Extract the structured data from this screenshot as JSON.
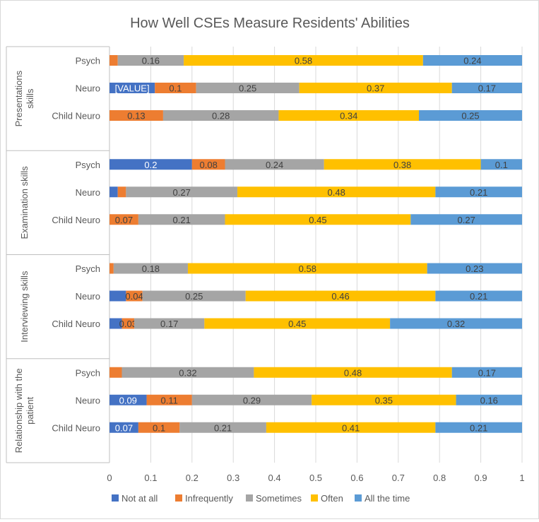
{
  "chart_data": {
    "type": "bar",
    "orientation": "horizontal",
    "stacked": true,
    "title": "How Well CSEs Measure Residents' Abilities",
    "xlabel": "",
    "ylabel": "",
    "xlim": [
      0,
      1
    ],
    "x_ticks": [
      "0",
      "0.1",
      "0.2",
      "0.3",
      "0.4",
      "0.5",
      "0.6",
      "0.7",
      "0.8",
      "0.9",
      "1"
    ],
    "grid": true,
    "legend_position": "bottom",
    "groups": [
      {
        "label": "Presentations skills",
        "label_lines": [
          "Presentations",
          "skills"
        ],
        "rows": [
          {
            "category": "Psych",
            "values": [
              0,
              0.02,
              0.16,
              0.58,
              0.24
            ],
            "labels": [
              "",
              "",
              "0.16",
              "0.58",
              "0.24"
            ]
          },
          {
            "category": "Neuro",
            "values": [
              0.11,
              0.1,
              0.25,
              0.37,
              0.17
            ],
            "labels": [
              "[VALUE]",
              "0.1",
              "0.25",
              "0.37",
              "0.17"
            ]
          },
          {
            "category": "Child Neuro",
            "values": [
              0,
              0.13,
              0.28,
              0.34,
              0.25
            ],
            "labels": [
              "",
              "0.13",
              "0.28",
              "0.34",
              "0.25"
            ]
          }
        ]
      },
      {
        "label": "Examination skills",
        "label_lines": [
          "Examination skills"
        ],
        "rows": [
          {
            "category": "Psych",
            "values": [
              0.2,
              0.08,
              0.24,
              0.38,
              0.1
            ],
            "labels": [
              "0.2",
              "0.08",
              "0.24",
              "0.38",
              "0.1"
            ]
          },
          {
            "category": "Neuro",
            "values": [
              0.02,
              0.02,
              0.27,
              0.48,
              0.21
            ],
            "labels": [
              "",
              "",
              "0.27",
              "0.48",
              "0.21"
            ]
          },
          {
            "category": "Child Neuro",
            "values": [
              0,
              0.07,
              0.21,
              0.45,
              0.27
            ],
            "labels": [
              "",
              "0.07",
              "0.21",
              "0.45",
              "0.27"
            ]
          }
        ]
      },
      {
        "label": "Interviewing skills",
        "label_lines": [
          "Interviewing skills"
        ],
        "rows": [
          {
            "category": "Psych",
            "values": [
              0,
              0.01,
              0.18,
              0.58,
              0.23
            ],
            "labels": [
              "",
              "",
              "0.18",
              "0.58",
              "0.23"
            ]
          },
          {
            "category": "Neuro",
            "values": [
              0.04,
              0.04,
              0.25,
              0.46,
              0.21
            ],
            "labels": [
              "",
              "0.04",
              "0.25",
              "0.46",
              "0.21"
            ]
          },
          {
            "category": "Child Neuro",
            "values": [
              0.03,
              0.03,
              0.17,
              0.45,
              0.32
            ],
            "labels": [
              "",
              "0.03",
              "0.17",
              "0.45",
              "0.32"
            ]
          }
        ]
      },
      {
        "label": "Relationship with the patient",
        "label_lines": [
          "Relationship with the",
          "patient"
        ],
        "rows": [
          {
            "category": "Psych",
            "values": [
              0,
              0.03,
              0.32,
              0.48,
              0.17
            ],
            "labels": [
              "",
              "",
              "0.32",
              "0.48",
              "0.17"
            ]
          },
          {
            "category": "Neuro",
            "values": [
              0.09,
              0.11,
              0.29,
              0.35,
              0.16
            ],
            "labels": [
              "0.09",
              "0.11",
              "0.29",
              "0.35",
              "0.16"
            ]
          },
          {
            "category": "Child Neuro",
            "values": [
              0.07,
              0.1,
              0.21,
              0.41,
              0.21
            ],
            "labels": [
              "0.07",
              "0.1",
              "0.21",
              "0.41",
              "0.21"
            ]
          }
        ]
      }
    ],
    "series": [
      {
        "name": "Not at all",
        "color": "#4472c4",
        "label_color": "#ffffff"
      },
      {
        "name": "Infrequently",
        "color": "#ed7d31",
        "label_color": "#404040"
      },
      {
        "name": "Sometimes",
        "color": "#a5a5a5",
        "label_color": "#404040"
      },
      {
        "name": "Often",
        "color": "#ffc000",
        "label_color": "#404040"
      },
      {
        "name": "All the time",
        "color": "#5b9bd5",
        "label_color": "#404040"
      }
    ]
  }
}
